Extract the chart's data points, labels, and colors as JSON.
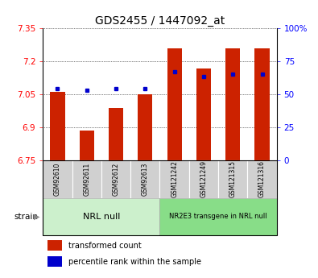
{
  "title": "GDS2455 / 1447092_at",
  "samples": [
    "GSM92610",
    "GSM92611",
    "GSM92612",
    "GSM92613",
    "GSM121242",
    "GSM121249",
    "GSM121315",
    "GSM121316"
  ],
  "bar_values": [
    7.06,
    6.885,
    6.985,
    7.05,
    7.255,
    7.165,
    7.255,
    7.255
  ],
  "percentile_values": [
    54,
    53,
    54,
    54,
    67,
    63,
    65,
    65
  ],
  "ylim": [
    6.75,
    7.35
  ],
  "yticks": [
    6.75,
    6.9,
    7.05,
    7.2,
    7.35
  ],
  "right_yticks": [
    0,
    25,
    50,
    75,
    100
  ],
  "bar_color": "#cc2200",
  "dot_color": "#0000cc",
  "groups": [
    {
      "label": "NRL null",
      "start": 0,
      "end": 4,
      "color": "#ccf0cc"
    },
    {
      "label": "NR2E3 transgene in NRL null",
      "start": 4,
      "end": 8,
      "color": "#88dd88"
    }
  ],
  "strain_label": "strain",
  "legend_bar_label": "transformed count",
  "legend_dot_label": "percentile rank within the sample",
  "title_fontsize": 10,
  "tick_fontsize": 7.5,
  "bar_width": 0.5,
  "sample_label_fontsize": 5.5,
  "group_label_fontsize1": 8,
  "group_label_fontsize2": 6,
  "legend_fontsize": 7
}
